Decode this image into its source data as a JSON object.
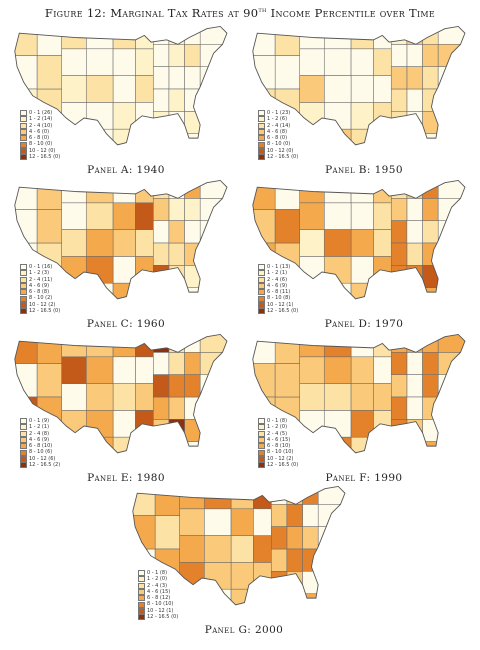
{
  "figure": {
    "label": "Figure 12:",
    "title_main": "Marginal Tax Rates at 90",
    "title_sup": "th",
    "title_tail": " Income Percentile over Time"
  },
  "bins": [
    {
      "label": "0 - 1",
      "color": "#fffbea"
    },
    {
      "label": "1 - 2",
      "color": "#fef2c8"
    },
    {
      "label": "2 - 4",
      "color": "#fde2a6"
    },
    {
      "label": "4 - 6",
      "color": "#fac97a"
    },
    {
      "label": "6 - 8",
      "color": "#f4a94c"
    },
    {
      "label": "8 - 10",
      "color": "#e4822b"
    },
    {
      "label": "10 - 12",
      "color": "#c45a1a"
    },
    {
      "label": "12 - 16.5",
      "color": "#8e300c"
    }
  ],
  "panels": [
    {
      "caption": "Panel A: 1940",
      "counts": [
        "(26)",
        "(14)",
        "(10)",
        "(0)",
        "(0)",
        "(0)",
        "(0)",
        "(0)"
      ],
      "dist": [
        26,
        14,
        10,
        0,
        0,
        0,
        0,
        0
      ]
    },
    {
      "caption": "Panel B: 1950",
      "counts": [
        "(23)",
        "(6)",
        "(14)",
        "(8)",
        "(0)",
        "(0)",
        "(0)",
        "(0)"
      ],
      "dist": [
        23,
        6,
        14,
        8,
        0,
        0,
        0,
        0
      ]
    },
    {
      "caption": "Panel C: 1960",
      "counts": [
        "(16)",
        "(3)",
        "(11)",
        "(9)",
        "(8)",
        "(2)",
        "(2)",
        "(0)"
      ],
      "dist": [
        16,
        3,
        11,
        9,
        8,
        2,
        2,
        0
      ]
    },
    {
      "caption": "Panel D: 1970",
      "counts": [
        "(13)",
        "(1)",
        "(6)",
        "(9)",
        "(11)",
        "(8)",
        "(1)",
        "(0)"
      ],
      "dist": [
        13,
        1,
        6,
        9,
        11,
        8,
        1,
        0
      ]
    },
    {
      "caption": "Panel E: 1980",
      "counts": [
        "(9)",
        "(1)",
        "(8)",
        "(9)",
        "(10)",
        "(6)",
        "(6)",
        "(2)"
      ],
      "dist": [
        9,
        1,
        8,
        9,
        10,
        6,
        6,
        2
      ]
    },
    {
      "caption": "Panel F: 1990",
      "counts": [
        "(8)",
        "(0)",
        "(5)",
        "(15)",
        "(10)",
        "(10)",
        "(2)",
        "(0)"
      ],
      "dist": [
        8,
        0,
        5,
        15,
        10,
        10,
        2,
        0
      ]
    },
    {
      "caption": "Panel G: 2000",
      "counts": [
        "(8)",
        "(0)",
        "(3)",
        "(15)",
        "(12)",
        "(10)",
        "(1)",
        "(0)"
      ],
      "dist": [
        8,
        0,
        3,
        15,
        12,
        10,
        1,
        0
      ]
    }
  ]
}
